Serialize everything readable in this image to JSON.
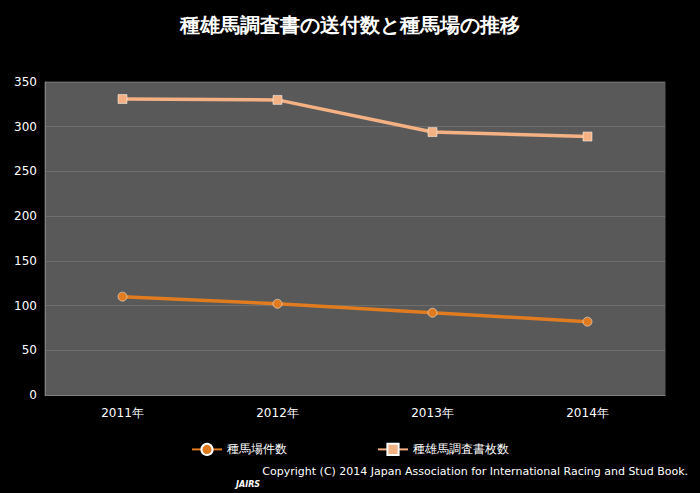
{
  "chart_data": {
    "type": "line",
    "title": "種雄馬調査書の送付数と種馬場の推移",
    "categories": [
      "2011年",
      "2012年",
      "2013年",
      "2014年"
    ],
    "series": [
      {
        "name": "種馬場件数",
        "color": "#e07b20",
        "marker": "circle",
        "values": [
          110,
          102,
          92,
          82
        ]
      },
      {
        "name": "種雄馬調査書枚数",
        "color": "#f4b183",
        "marker": "square",
        "values": [
          331,
          330,
          294,
          289
        ]
      }
    ],
    "ylim": [
      0,
      350
    ],
    "yticks": [
      0,
      50,
      100,
      150,
      200,
      250,
      300,
      350
    ],
    "grid": true,
    "legend": "bottom",
    "annotations": [
      "Copyright (C) 2014 Japan Association for International Racing and Stud Book.",
      "JAIRS"
    ]
  }
}
